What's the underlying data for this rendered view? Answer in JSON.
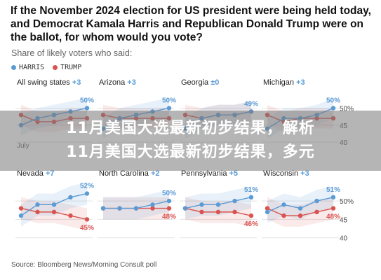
{
  "header": {
    "headline": "If the November 2024 election for US president were being held today, and Democrat Kamala Harris and Republican Donald Trump were on the ballot, for whom would you vote?",
    "subtitle": "Share of likely voters who said:"
  },
  "legend": [
    {
      "label": "HARRIS",
      "color": "#5b9bd5"
    },
    {
      "label": "TRUMP",
      "color": "#d9534f"
    }
  ],
  "source": "Source: Bloomberg News/Morning Consult poll",
  "overlay": {
    "line1": "11月美国大选最新初步结果，解析",
    "line2": "11月美国大选最新初步结果，多元"
  },
  "chart_data": {
    "type": "line",
    "x_tick_visible": "July",
    "y_ticks": [
      "50%",
      "45",
      "40"
    ],
    "ylim": [
      39,
      54
    ],
    "colors": {
      "harris": "#5b9bd5",
      "trump": "#d9534f"
    },
    "panels": [
      {
        "title": "All swing states",
        "margin": "+3",
        "harris": [
          45,
          47,
          48,
          49,
          50
        ],
        "trump": [
          48,
          46,
          46,
          47,
          47
        ],
        "harris_label": "50%",
        "trump_label": ""
      },
      {
        "title": "Arizona",
        "margin": "+3",
        "harris": [
          44,
          47,
          48,
          49,
          50
        ],
        "trump": [
          48,
          47,
          47,
          47,
          47
        ],
        "harris_label": "50%",
        "trump_label": ""
      },
      {
        "title": "Georgia",
        "margin": "±0",
        "harris": [
          44,
          47,
          48,
          48,
          49
        ],
        "trump": [
          48,
          47,
          48,
          48,
          49
        ],
        "harris_label": "49%",
        "trump_label": ""
      },
      {
        "title": "Michigan",
        "margin": "+3",
        "harris": [
          44,
          47,
          47,
          48,
          50
        ],
        "trump": [
          48,
          46,
          47,
          47,
          47
        ],
        "harris_label": "50%",
        "trump_label": ""
      },
      {
        "title": "Nevada",
        "margin": "+7",
        "harris": [
          46,
          49,
          49,
          51,
          52
        ],
        "trump": [
          48,
          47,
          47,
          46,
          45
        ],
        "harris_label": "52%",
        "trump_label": "45%"
      },
      {
        "title": "North Carolina",
        "margin": "+2",
        "harris": [
          48,
          48,
          48,
          49,
          50
        ],
        "trump": [
          48,
          48,
          48,
          48,
          48
        ],
        "harris_label": "50%",
        "trump_label": "48%"
      },
      {
        "title": "Pennsylvania",
        "margin": "+5",
        "harris": [
          48,
          49,
          49,
          50,
          51
        ],
        "trump": [
          48,
          47,
          47,
          47,
          46
        ],
        "harris_label": "51%",
        "trump_label": "46%"
      },
      {
        "title": "Wisconsin",
        "margin": "+3",
        "harris": [
          47,
          49,
          48,
          50,
          51
        ],
        "trump": [
          48,
          46,
          46,
          47,
          48
        ],
        "harris_label": "51%",
        "trump_label": "48%"
      }
    ]
  }
}
